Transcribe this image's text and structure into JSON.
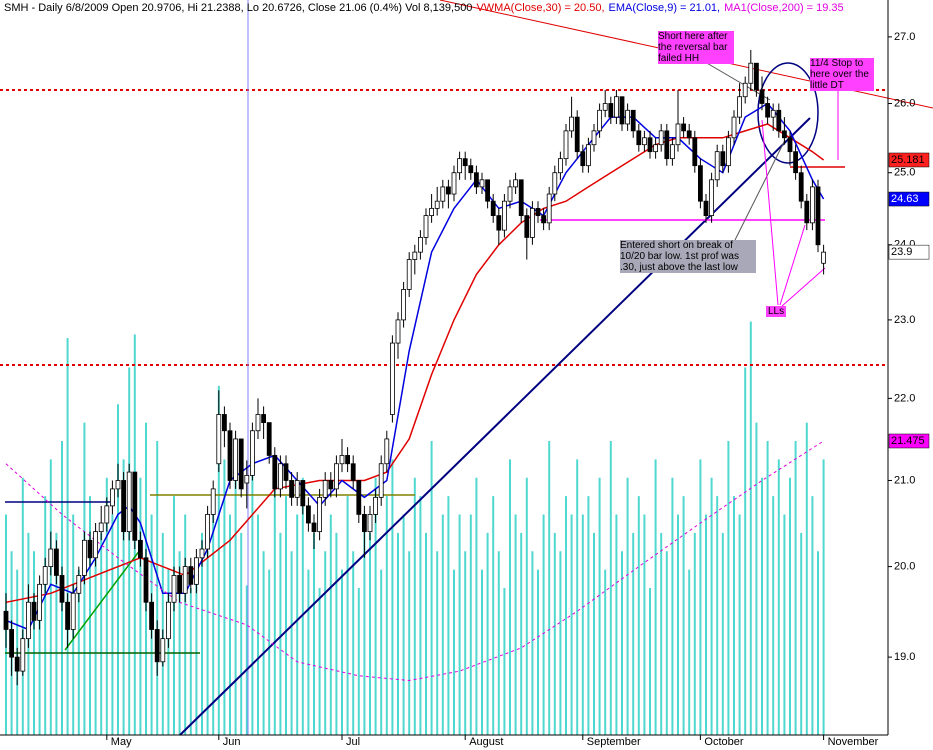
{
  "chart_data": {
    "type": "candlestick",
    "header": [
      {
        "text": "SMH - Daily 6/8/2009 Open 20.9706, Hi 21.2388, Lo 20.6726, Close 21.06 (0.4%) Vol 8,139,500",
        "color": "#000000"
      },
      {
        "text": "VWMA(Close,30) = 20.50,",
        "color": "#e00000"
      },
      {
        "text": "EMA(Close,9) = 21.01,",
        "color": "#0000e0"
      },
      {
        "text": "MA1(Close,200) = 19.35",
        "color": "#e000e0"
      }
    ],
    "log_scale": true,
    "ylim": [
      18.18,
      27.57
    ],
    "yticks": [
      {
        "value": 19,
        "label": "19.0"
      },
      {
        "value": 20,
        "label": "20.0"
      },
      {
        "value": 21,
        "label": "21.0"
      },
      {
        "value": 22,
        "label": "22.0"
      },
      {
        "value": 23,
        "label": "23.0"
      },
      {
        "value": 24,
        "label": "24.0"
      },
      {
        "value": 25,
        "label": "25.0"
      },
      {
        "value": 26,
        "label": "26.0"
      },
      {
        "value": 27,
        "label": "27.0"
      }
    ],
    "y2lim": [
      0,
      40
    ],
    "categories": [
      null,
      null,
      null,
      null,
      null,
      null,
      null,
      null,
      null,
      null,
      null,
      null,
      null,
      null,
      null,
      null,
      null,
      null,
      "May",
      null,
      null,
      null,
      null,
      null,
      null,
      null,
      null,
      null,
      null,
      null,
      null,
      null,
      null,
      null,
      null,
      null,
      null,
      null,
      "Jun",
      null,
      null,
      null,
      null,
      null,
      null,
      null,
      null,
      null,
      null,
      null,
      null,
      null,
      null,
      null,
      null,
      null,
      null,
      null,
      null,
      null,
      "Jul",
      null,
      null,
      null,
      null,
      null,
      null,
      null,
      null,
      null,
      null,
      null,
      null,
      null,
      null,
      null,
      null,
      null,
      null,
      null,
      null,
      null,
      "August",
      null,
      null,
      null,
      null,
      null,
      null,
      null,
      null,
      null,
      null,
      null,
      null,
      null,
      null,
      null,
      null,
      null,
      null,
      null,
      null,
      "September",
      null,
      null,
      null,
      null,
      null,
      null,
      null,
      null,
      null,
      null,
      null,
      null,
      null,
      null,
      null,
      null,
      null,
      null,
      null,
      null,
      "October",
      null,
      null,
      null,
      null,
      null,
      null,
      null,
      null,
      null,
      null,
      null,
      null,
      null,
      null,
      null,
      null,
      null,
      null,
      null,
      null,
      null,
      "November"
    ],
    "up_color": "#ffffff",
    "down_color": "#000000",
    "ohlc": [
      [
        19.5,
        19.7,
        19.1,
        19.3
      ],
      [
        19.3,
        19.4,
        18.8,
        19.0
      ],
      [
        19.0,
        19.1,
        18.7,
        18.85
      ],
      [
        18.85,
        19.3,
        18.8,
        19.2
      ],
      [
        19.2,
        19.8,
        19.1,
        19.6
      ],
      [
        19.6,
        19.7,
        19.3,
        19.4
      ],
      [
        19.4,
        19.9,
        19.3,
        19.8
      ],
      [
        19.8,
        20.1,
        19.7,
        20.0
      ],
      [
        20.0,
        20.4,
        19.9,
        20.2
      ],
      [
        20.2,
        20.3,
        19.8,
        19.9
      ],
      [
        19.9,
        20.0,
        19.5,
        19.6
      ],
      [
        19.6,
        19.7,
        19.1,
        19.3
      ],
      [
        19.3,
        19.8,
        19.2,
        19.7
      ],
      [
        19.7,
        20.0,
        19.6,
        19.9
      ],
      [
        19.9,
        20.4,
        19.8,
        20.3
      ],
      [
        20.3,
        20.4,
        20.0,
        20.1
      ],
      [
        20.1,
        20.5,
        20.0,
        20.4
      ],
      [
        20.4,
        20.7,
        20.3,
        20.5
      ],
      [
        20.5,
        20.8,
        20.4,
        20.7
      ],
      [
        20.7,
        21.0,
        20.6,
        20.9
      ],
      [
        20.9,
        21.2,
        20.8,
        21.0
      ],
      [
        21.0,
        21.1,
        20.3,
        20.4
      ],
      [
        20.4,
        21.2,
        20.3,
        21.1
      ],
      [
        21.1,
        21.1,
        20.2,
        20.3
      ],
      [
        20.3,
        20.4,
        20.0,
        20.1
      ],
      [
        20.1,
        20.2,
        19.5,
        19.6
      ],
      [
        19.6,
        19.7,
        19.2,
        19.3
      ],
      [
        19.3,
        19.4,
        18.8,
        18.95
      ],
      [
        18.95,
        19.3,
        18.9,
        19.2
      ],
      [
        19.2,
        19.7,
        19.1,
        19.6
      ],
      [
        19.6,
        20.0,
        19.5,
        19.9
      ],
      [
        19.9,
        20.0,
        19.6,
        19.7
      ],
      [
        19.7,
        20.1,
        19.6,
        20.0
      ],
      [
        20.0,
        20.1,
        19.7,
        19.8
      ],
      [
        19.8,
        20.2,
        19.7,
        20.1
      ],
      [
        20.1,
        20.3,
        20.0,
        20.2
      ],
      [
        20.2,
        20.7,
        20.1,
        20.6
      ],
      [
        20.6,
        21.0,
        20.5,
        20.9
      ],
      [
        21.2,
        22.1,
        21.1,
        21.8
      ],
      [
        21.8,
        21.9,
        21.4,
        21.6
      ],
      [
        21.6,
        21.7,
        20.9,
        21.0
      ],
      [
        21.0,
        21.6,
        20.9,
        21.5
      ],
      [
        21.5,
        21.5,
        20.8,
        20.9
      ],
      [
        20.97,
        21.24,
        20.67,
        21.06
      ],
      [
        21.06,
        21.7,
        21.0,
        21.6
      ],
      [
        21.6,
        22.0,
        21.5,
        21.8
      ],
      [
        21.8,
        21.9,
        21.5,
        21.7
      ],
      [
        21.7,
        21.7,
        21.2,
        21.3
      ],
      [
        21.3,
        21.4,
        20.8,
        20.9
      ],
      [
        20.9,
        21.3,
        20.8,
        21.2
      ],
      [
        21.2,
        21.3,
        20.9,
        21.0
      ],
      [
        21.0,
        21.1,
        20.7,
        20.8
      ],
      [
        20.8,
        21.1,
        20.7,
        21.0
      ],
      [
        21.0,
        21.0,
        20.6,
        20.7
      ],
      [
        20.7,
        20.8,
        20.4,
        20.5
      ],
      [
        20.5,
        20.6,
        20.2,
        20.4
      ],
      [
        20.4,
        20.9,
        20.3,
        20.8
      ],
      [
        20.8,
        21.1,
        20.7,
        21.0
      ],
      [
        21.0,
        21.1,
        20.8,
        20.9
      ],
      [
        20.9,
        21.3,
        20.8,
        21.2
      ],
      [
        21.2,
        21.5,
        21.1,
        21.3
      ],
      [
        21.3,
        21.4,
        21.1,
        21.2
      ],
      [
        21.2,
        21.3,
        20.9,
        21.0
      ],
      [
        21.0,
        21.0,
        20.5,
        20.6
      ],
      [
        20.6,
        20.7,
        20.1,
        20.4
      ],
      [
        20.4,
        20.7,
        20.3,
        20.6
      ],
      [
        20.6,
        20.9,
        20.5,
        20.8
      ],
      [
        20.8,
        21.3,
        20.7,
        21.2
      ],
      [
        21.2,
        21.6,
        21.1,
        21.5
      ],
      [
        21.8,
        22.8,
        21.7,
        22.7
      ],
      [
        22.7,
        23.1,
        22.5,
        23.0
      ],
      [
        23.0,
        23.5,
        22.9,
        23.4
      ],
      [
        23.4,
        23.9,
        23.3,
        23.8
      ],
      [
        23.8,
        24.0,
        23.6,
        23.9
      ],
      [
        23.9,
        24.2,
        23.8,
        24.1
      ],
      [
        24.1,
        24.5,
        24.0,
        24.4
      ],
      [
        24.4,
        24.7,
        24.3,
        24.5
      ],
      [
        24.5,
        24.8,
        24.4,
        24.6
      ],
      [
        24.6,
        24.9,
        24.5,
        24.8
      ],
      [
        24.8,
        24.9,
        24.5,
        24.7
      ],
      [
        24.7,
        25.1,
        24.6,
        25.0
      ],
      [
        25.0,
        25.3,
        24.9,
        25.2
      ],
      [
        25.2,
        25.3,
        24.9,
        25.1
      ],
      [
        25.1,
        25.2,
        24.9,
        25.0
      ],
      [
        25.0,
        25.1,
        24.7,
        24.8
      ],
      [
        24.8,
        25.0,
        24.7,
        24.9
      ],
      [
        24.9,
        24.9,
        24.5,
        24.6
      ],
      [
        24.6,
        24.7,
        24.3,
        24.4
      ],
      [
        24.4,
        24.5,
        24.0,
        24.2
      ],
      [
        24.2,
        24.7,
        24.1,
        24.6
      ],
      [
        24.6,
        24.9,
        24.5,
        24.8
      ],
      [
        24.8,
        25.0,
        24.7,
        24.9
      ],
      [
        24.9,
        24.9,
        24.3,
        24.4
      ],
      [
        24.4,
        24.5,
        23.8,
        24.1
      ],
      [
        24.1,
        24.6,
        24.0,
        24.5
      ],
      [
        24.5,
        24.6,
        24.3,
        24.4
      ],
      [
        24.4,
        24.5,
        24.2,
        24.3
      ],
      [
        24.3,
        24.8,
        24.2,
        24.7
      ],
      [
        24.7,
        25.1,
        24.6,
        25.0
      ],
      [
        25.0,
        25.3,
        24.9,
        25.2
      ],
      [
        25.2,
        25.7,
        25.1,
        25.6
      ],
      [
        25.6,
        26.1,
        25.5,
        25.8
      ],
      [
        25.8,
        25.9,
        25.2,
        25.3
      ],
      [
        25.3,
        25.4,
        25.0,
        25.1
      ],
      [
        25.1,
        25.5,
        25.0,
        25.4
      ],
      [
        25.4,
        25.7,
        25.3,
        25.6
      ],
      [
        25.6,
        26.0,
        25.5,
        25.9
      ],
      [
        25.9,
        26.2,
        25.8,
        26.0
      ],
      [
        26.0,
        26.1,
        25.7,
        25.8
      ],
      [
        25.8,
        26.2,
        25.7,
        26.1
      ],
      [
        26.1,
        26.1,
        25.6,
        25.7
      ],
      [
        25.7,
        26.0,
        25.6,
        25.9
      ],
      [
        25.9,
        25.9,
        25.5,
        25.6
      ],
      [
        25.6,
        25.7,
        25.3,
        25.4
      ],
      [
        25.4,
        25.6,
        25.3,
        25.5
      ],
      [
        25.5,
        25.6,
        25.2,
        25.3
      ],
      [
        25.3,
        25.5,
        25.2,
        25.4
      ],
      [
        25.4,
        25.7,
        25.3,
        25.6
      ],
      [
        25.6,
        25.7,
        25.1,
        25.2
      ],
      [
        25.2,
        25.5,
        25.1,
        25.4
      ],
      [
        25.4,
        26.2,
        25.3,
        25.7
      ],
      [
        25.7,
        25.8,
        25.5,
        25.6
      ],
      [
        25.6,
        25.7,
        25.4,
        25.5
      ],
      [
        25.5,
        25.6,
        25.0,
        25.1
      ],
      [
        25.1,
        25.2,
        24.5,
        24.6
      ],
      [
        24.6,
        24.7,
        24.3,
        24.4
      ],
      [
        24.4,
        25.0,
        24.3,
        24.9
      ],
      [
        24.9,
        25.4,
        24.8,
        25.3
      ],
      [
        25.3,
        25.4,
        25.0,
        25.1
      ],
      [
        25.1,
        25.6,
        25.0,
        25.5
      ],
      [
        25.5,
        25.9,
        25.4,
        25.8
      ],
      [
        25.8,
        26.3,
        25.7,
        26.1
      ],
      [
        26.1,
        26.4,
        26.0,
        26.3
      ],
      [
        26.3,
        26.8,
        26.2,
        26.6
      ],
      [
        26.6,
        26.6,
        26.1,
        26.2
      ],
      [
        26.2,
        26.4,
        25.9,
        26.0
      ],
      [
        26.0,
        26.1,
        25.7,
        25.8
      ],
      [
        25.8,
        26.0,
        25.6,
        25.9
      ],
      [
        25.9,
        26.0,
        25.5,
        25.6
      ],
      [
        25.6,
        25.8,
        25.4,
        25.5
      ],
      [
        25.5,
        25.6,
        25.1,
        25.3
      ],
      [
        25.3,
        25.4,
        24.9,
        25.0
      ],
      [
        25.0,
        25.1,
        24.5,
        24.6
      ],
      [
        24.6,
        24.7,
        24.2,
        24.3
      ],
      [
        24.3,
        24.9,
        24.2,
        24.8
      ],
      [
        24.8,
        24.9,
        23.9,
        24.0
      ],
      [
        23.75,
        24.0,
        23.6,
        23.9
      ]
    ],
    "volume_color": "#4fd8d0",
    "volume": [
      12,
      10,
      9,
      14,
      11,
      10,
      8,
      13,
      15,
      11,
      16,
      21.6,
      12,
      9,
      17,
      13,
      10,
      11,
      14,
      12,
      18,
      15,
      20,
      21.8,
      14,
      17,
      12,
      16,
      11,
      9,
      13,
      10,
      12,
      8,
      9,
      11,
      10,
      13,
      19,
      15,
      12,
      14,
      11,
      8.14,
      16,
      12,
      10,
      9,
      15,
      11,
      13,
      10,
      12,
      14,
      9,
      11,
      8,
      10,
      12,
      11,
      9,
      13,
      10,
      8,
      12,
      11,
      14,
      9,
      13,
      15,
      11,
      12,
      10,
      14,
      13,
      11,
      16,
      10,
      12,
      13,
      9,
      12,
      10,
      12,
      14,
      9,
      11,
      13,
      10,
      8,
      15,
      12,
      11,
      14,
      10,
      9,
      12,
      16,
      11,
      10,
      13,
      12,
      15,
      12,
      13,
      11,
      14,
      9,
      16,
      12,
      10,
      14,
      11,
      13,
      12,
      8,
      15,
      11,
      10,
      14,
      12,
      13,
      9,
      11,
      15,
      12,
      14,
      13,
      11,
      16,
      13,
      12,
      20,
      22.5,
      17,
      14,
      16,
      13,
      15,
      12,
      14,
      16,
      11,
      17,
      13,
      10,
      15
    ],
    "series": [
      {
        "color": "#e00000",
        "dashed": false,
        "x": [
          0,
          8,
          16,
          24,
          32,
          40,
          48,
          56,
          64,
          68,
          72,
          76,
          80,
          84,
          88,
          92,
          96,
          100,
          104,
          108,
          112,
          116,
          120,
          124,
          128,
          132,
          136,
          140,
          144,
          146
        ],
        "values": [
          19.6,
          19.7,
          19.9,
          20.1,
          19.9,
          20.3,
          20.9,
          21.0,
          21.0,
          21.1,
          21.5,
          22.3,
          23.0,
          23.6,
          24.0,
          24.3,
          24.5,
          24.6,
          24.8,
          25.0,
          25.2,
          25.4,
          25.5,
          25.5,
          25.5,
          25.6,
          25.7,
          25.5,
          25.3,
          25.181
        ]
      },
      {
        "color": "#0000e0",
        "dashed": false,
        "x": [
          0,
          4,
          8,
          12,
          16,
          20,
          22,
          24,
          28,
          32,
          36,
          40,
          44,
          48,
          52,
          56,
          60,
          64,
          68,
          72,
          76,
          80,
          84,
          88,
          92,
          96,
          100,
          104,
          108,
          112,
          116,
          120,
          124,
          128,
          132,
          136,
          140,
          144,
          146
        ],
        "values": [
          19.4,
          19.3,
          19.8,
          19.7,
          20.1,
          20.6,
          20.7,
          20.5,
          19.7,
          19.7,
          20.2,
          21.0,
          21.2,
          21.3,
          21.0,
          20.7,
          21.0,
          20.8,
          21.0,
          22.6,
          23.9,
          24.5,
          24.9,
          24.5,
          24.6,
          24.4,
          25.0,
          25.4,
          25.8,
          25.8,
          25.5,
          25.5,
          25.2,
          25.0,
          25.8,
          26.0,
          25.6,
          24.9,
          24.63
        ]
      },
      {
        "color": "#e000e0",
        "dashed": true,
        "x": [
          0,
          10,
          20,
          31,
          43,
          52,
          63,
          72,
          81,
          92,
          102,
          113,
          124,
          135,
          146
        ],
        "values": [
          21.2,
          20.6,
          20.1,
          19.6,
          19.35,
          18.95,
          18.8,
          18.75,
          18.85,
          19.1,
          19.5,
          20.0,
          20.5,
          21.0,
          21.475
        ]
      }
    ],
    "price_tags": [
      {
        "value": 25.181,
        "color": "#ff2020",
        "text_color": "#000000"
      },
      {
        "value": 24.63,
        "color": "#0000ff",
        "text_color": "#ffffff"
      },
      {
        "value": 23.9,
        "color": "#ffffff",
        "text_color": "#000000"
      },
      {
        "value": 21.475,
        "color": "#ff00ff",
        "text_color": "#000000"
      }
    ],
    "annotations": [
      "Short here after the reversal bar failed HH",
      "11/4 Stop to here over the little DT",
      "Entered short on break of 10/20 bar low. 1st prof was .30, just above the last low",
      "LLs"
    ]
  }
}
